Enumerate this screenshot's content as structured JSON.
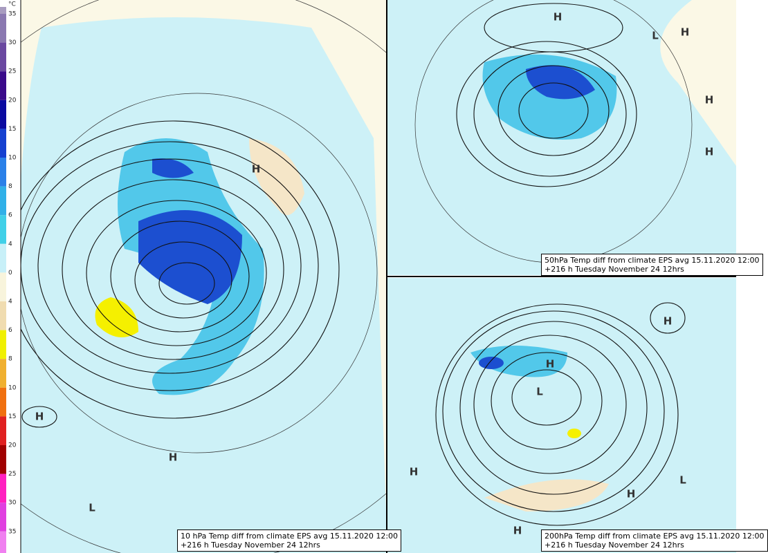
{
  "colorbar": {
    "unit": "°C",
    "ticks": [
      35,
      30,
      25,
      20,
      15,
      10,
      8,
      6,
      4,
      0,
      4,
      6,
      8,
      10,
      15,
      20,
      25,
      30,
      35
    ]
  },
  "panels": [
    {
      "caption": [
        "10 hPa Temp diff from climate EPS avg 15.11.2020 12:00",
        "+216 h Tuesday November 24 12hrs"
      ],
      "labels": [
        "H",
        "H",
        "H",
        "L"
      ]
    },
    {
      "caption": [
        "50hPa Temp diff from climate EPS avg 15.11.2020 12:00",
        "+216 h Tuesday November 24 12hrs"
      ],
      "labels": [
        "H",
        "L",
        "H",
        "H",
        "H"
      ]
    },
    {
      "caption": [
        "200hPa Temp diff from climate EPS avg 15.11.2020 12:00",
        "+216 h Tuesday November 24 12hrs"
      ],
      "labels": [
        "H",
        "H",
        "L",
        "H",
        "L",
        "H",
        "H"
      ]
    }
  ]
}
